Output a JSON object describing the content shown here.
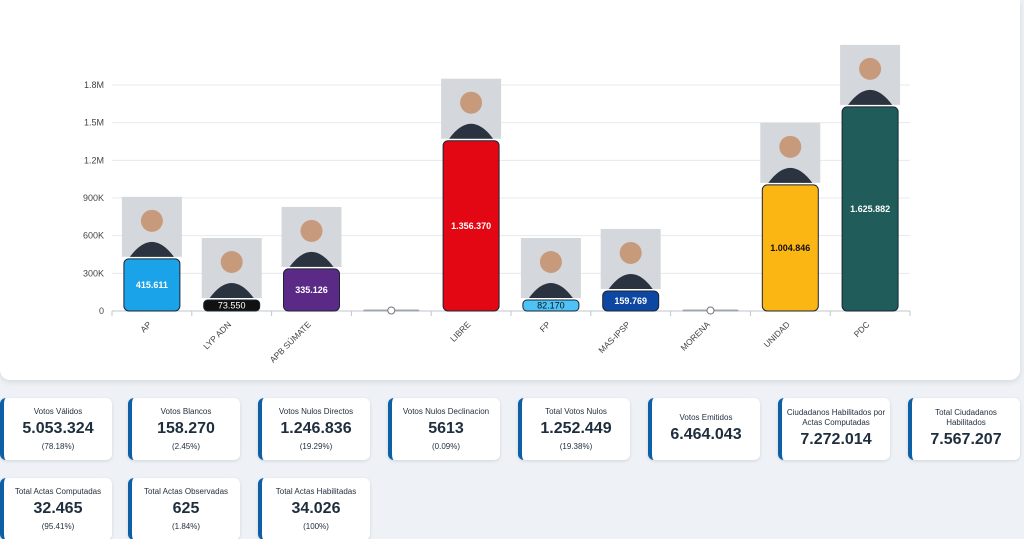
{
  "chart_data": {
    "type": "bar",
    "categories": [
      "AP",
      "LYP ADN",
      "APB SÚMATE",
      "",
      "LIBRE",
      "FP",
      "MAS-IPSP",
      "MORENA",
      "UNIDAD",
      "PDC"
    ],
    "values": [
      415611,
      73550,
      335126,
      0,
      1356370,
      82170,
      159769,
      0,
      1004846,
      1625882
    ],
    "value_labels": [
      "415.611",
      "73.550",
      "335.126",
      "0",
      "1.356.370",
      "82.170",
      "159.769",
      "0",
      "1.004.846",
      "1.625.882"
    ],
    "colors": [
      "#1aa3e8",
      "#111111",
      "#5b2a86",
      "#cccccc",
      "#e30613",
      "#4fc3f7",
      "#0d47a1",
      "#cccccc",
      "#fbb614",
      "#1f5c5a"
    ],
    "label_colors": [
      "#ffffff",
      "#ffffff",
      "#ffffff",
      "#333333",
      "#ffffff",
      "#111111",
      "#ffffff",
      "#333333",
      "#111111",
      "#ffffff"
    ],
    "has_photo": [
      true,
      true,
      true,
      false,
      true,
      true,
      true,
      false,
      true,
      true
    ],
    "yticks": [
      0,
      300000,
      600000,
      900000,
      1200000,
      1500000,
      1800000
    ],
    "ytick_labels": [
      "0",
      "300K",
      "600K",
      "900K",
      "1.2M",
      "1.5M",
      "1.8M"
    ],
    "ylim": [
      0,
      1800000
    ],
    "title": "",
    "xlabel": "",
    "ylabel": ""
  },
  "stats": [
    {
      "label": "Votos Válidos",
      "value": "5.053.324",
      "pct": "(78.18%)"
    },
    {
      "label": "Votos Blancos",
      "value": "158.270",
      "pct": "(2.45%)"
    },
    {
      "label": "Votos Nulos Directos",
      "value": "1.246.836",
      "pct": "(19.29%)"
    },
    {
      "label": "Votos Nulos Declinacion",
      "value": "5613",
      "pct": "(0.09%)"
    },
    {
      "label": "Total Votos Nulos",
      "value": "1.252.449",
      "pct": "(19.38%)"
    },
    {
      "label": "Votos Emitidos",
      "value": "6.464.043",
      "pct": ""
    },
    {
      "label": "Ciudadanos Habilitados por Actas Computadas",
      "value": "7.272.014",
      "pct": ""
    },
    {
      "label": "Total Ciudadanos Habilitados",
      "value": "7.567.207",
      "pct": ""
    },
    {
      "label": "Total Actas Computadas",
      "value": "32.465",
      "pct": "(95.41%)"
    },
    {
      "label": "Total Actas Observadas",
      "value": "625",
      "pct": "(1.84%)"
    },
    {
      "label": "Total Actas Habilitadas",
      "value": "34.026",
      "pct": "(100%)"
    }
  ]
}
